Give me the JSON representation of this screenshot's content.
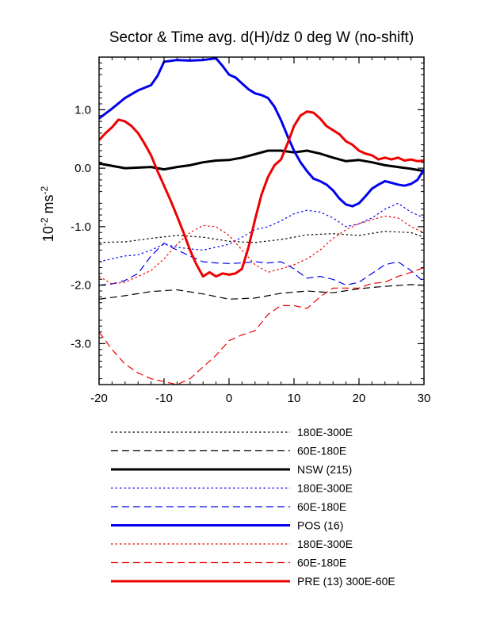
{
  "chart_data": {
    "type": "line",
    "title": "Sector & Time avg. d(H)/dz 0 deg W (no-shift)",
    "ylabel": {
      "base": "10",
      "exp1": "-2",
      "unit": " ms",
      "exp2": "-2"
    },
    "xlabel": "",
    "xlim": [
      -20,
      30
    ],
    "ylim": [
      -3.7,
      1.9
    ],
    "xticks": [
      -20,
      -10,
      0,
      10,
      20,
      30
    ],
    "xtick_labels": [
      "-20",
      "-10",
      "0",
      "10",
      "20",
      "30"
    ],
    "yticks": [
      1.0,
      0.0,
      -1.0,
      -2.0,
      -3.0
    ],
    "ytick_labels": [
      "1.0",
      "0.0",
      "-1.0",
      "-2.0",
      "-3.0"
    ],
    "grid": false,
    "legend_position": "below",
    "series": [
      {
        "name": "180E-300E",
        "color": "#000000",
        "dash": "dot",
        "width": 1.2,
        "x": [
          -20,
          -16,
          -12,
          -8,
          -4,
          0,
          4,
          8,
          12,
          16,
          20,
          24,
          28,
          30
        ],
        "y": [
          -1.27,
          -1.26,
          -1.2,
          -1.15,
          -1.18,
          -1.25,
          -1.27,
          -1.22,
          -1.14,
          -1.12,
          -1.15,
          -1.08,
          -1.1,
          -1.18
        ]
      },
      {
        "name": "60E-180E",
        "color": "#000000",
        "dash": "dash",
        "width": 1.2,
        "x": [
          -20,
          -16,
          -12,
          -8,
          -4,
          0,
          4,
          8,
          12,
          16,
          20,
          24,
          28,
          30
        ],
        "y": [
          -2.24,
          -2.18,
          -2.11,
          -2.08,
          -2.15,
          -2.24,
          -2.22,
          -2.14,
          -2.1,
          -2.13,
          -2.06,
          -2.02,
          -1.99,
          -2.0
        ]
      },
      {
        "name": "NSW (215)",
        "color": "#000000",
        "dash": "solid",
        "width": 3,
        "x": [
          -20,
          -16,
          -12,
          -10,
          -8,
          -6,
          -4,
          -2,
          0,
          2,
          4,
          6,
          8,
          10,
          12,
          14,
          16,
          18,
          20,
          22,
          24,
          26,
          28,
          30
        ],
        "y": [
          0.08,
          0.0,
          0.02,
          -0.02,
          0.02,
          0.05,
          0.1,
          0.13,
          0.14,
          0.18,
          0.24,
          0.3,
          0.3,
          0.27,
          0.3,
          0.25,
          0.18,
          0.12,
          0.14,
          0.1,
          0.05,
          0.02,
          -0.01,
          -0.05
        ]
      },
      {
        "name": "180E-300E",
        "color": "#0000ee",
        "dash": "dot",
        "width": 1.2,
        "x": [
          -20,
          -16,
          -14,
          -12,
          -10,
          -8,
          -6,
          -4,
          -2,
          0,
          2,
          4,
          6,
          8,
          10,
          12,
          14,
          16,
          18,
          20,
          22,
          24,
          26,
          28,
          30
        ],
        "y": [
          -1.6,
          -1.5,
          -1.48,
          -1.4,
          -1.3,
          -1.35,
          -1.38,
          -1.4,
          -1.35,
          -1.3,
          -1.18,
          -1.05,
          -1.0,
          -0.9,
          -0.78,
          -0.72,
          -0.75,
          -0.85,
          -1.0,
          -0.95,
          -0.85,
          -0.7,
          -0.6,
          -0.75,
          -0.85
        ]
      },
      {
        "name": "60E-180E",
        "color": "#0000ee",
        "dash": "dash",
        "width": 1.2,
        "x": [
          -20,
          -18,
          -16,
          -14,
          -12,
          -10,
          -8,
          -6,
          -4,
          -2,
          0,
          2,
          4,
          6,
          8,
          10,
          12,
          14,
          16,
          18,
          20,
          22,
          24,
          26,
          28,
          30
        ],
        "y": [
          -2.0,
          -1.98,
          -1.92,
          -1.8,
          -1.5,
          -1.28,
          -1.4,
          -1.5,
          -1.6,
          -1.62,
          -1.63,
          -1.62,
          -1.6,
          -1.62,
          -1.6,
          -1.72,
          -1.88,
          -1.85,
          -1.9,
          -2.0,
          -1.95,
          -1.8,
          -1.65,
          -1.6,
          -1.75,
          -1.95
        ]
      },
      {
        "name": "POS (16)",
        "color": "#0000ee",
        "dash": "solid",
        "width": 3,
        "x": [
          -20,
          -18,
          -16,
          -14,
          -12,
          -11,
          -10,
          -8,
          -6,
          -4,
          -2,
          -1,
          0,
          1,
          2,
          3,
          4,
          5,
          6,
          7,
          8,
          9,
          10,
          11,
          12,
          13,
          14,
          15,
          16,
          17,
          18,
          19,
          20,
          21,
          22,
          23,
          24,
          25,
          26,
          27,
          28,
          29,
          30
        ],
        "y": [
          0.85,
          1.02,
          1.2,
          1.33,
          1.42,
          1.58,
          1.82,
          1.85,
          1.84,
          1.85,
          1.88,
          1.75,
          1.6,
          1.55,
          1.45,
          1.35,
          1.28,
          1.25,
          1.2,
          1.05,
          0.82,
          0.55,
          0.3,
          0.1,
          -0.05,
          -0.18,
          -0.22,
          -0.28,
          -0.38,
          -0.52,
          -0.62,
          -0.65,
          -0.6,
          -0.48,
          -0.35,
          -0.28,
          -0.22,
          -0.25,
          -0.28,
          -0.3,
          -0.27,
          -0.2,
          -0.02
        ]
      },
      {
        "name": "180E-300E",
        "color": "#ee0000",
        "dash": "dot",
        "width": 1.2,
        "x": [
          -20,
          -18,
          -16,
          -14,
          -12,
          -10,
          -8,
          -6,
          -4,
          -2,
          0,
          2,
          4,
          6,
          8,
          10,
          12,
          14,
          16,
          18,
          20,
          22,
          24,
          26,
          28,
          30
        ],
        "y": [
          -1.85,
          -1.98,
          -1.95,
          -1.85,
          -1.75,
          -1.55,
          -1.3,
          -1.1,
          -0.98,
          -1.0,
          -1.15,
          -1.4,
          -1.65,
          -1.78,
          -1.72,
          -1.65,
          -1.55,
          -1.4,
          -1.2,
          -1.05,
          -0.95,
          -0.88,
          -0.82,
          -0.85,
          -1.0,
          -1.1
        ]
      },
      {
        "name": "60E-180E",
        "color": "#ee0000",
        "dash": "dash",
        "width": 1.2,
        "x": [
          -20,
          -18,
          -16,
          -14,
          -12,
          -10,
          -8,
          -6,
          -4,
          -2,
          0,
          2,
          4,
          6,
          8,
          10,
          12,
          14,
          16,
          18,
          20,
          22,
          24,
          26,
          28,
          30
        ],
        "y": [
          -2.8,
          -3.1,
          -3.35,
          -3.5,
          -3.6,
          -3.65,
          -3.7,
          -3.6,
          -3.4,
          -3.2,
          -2.95,
          -2.85,
          -2.78,
          -2.5,
          -2.35,
          -2.35,
          -2.4,
          -2.2,
          -2.05,
          -2.05,
          -2.05,
          -1.97,
          -1.95,
          -1.85,
          -1.78,
          -1.7
        ]
      },
      {
        "name": "PRE (13) 300E-60E",
        "color": "#ee0000",
        "dash": "solid",
        "width": 3,
        "x": [
          -20,
          -19,
          -18,
          -17,
          -16,
          -15,
          -14,
          -13,
          -12,
          -11,
          -10,
          -9,
          -8,
          -7,
          -6,
          -5,
          -4,
          -3,
          -2,
          -1,
          0,
          1,
          2,
          3,
          4,
          5,
          6,
          7,
          8,
          9,
          10,
          11,
          12,
          13,
          14,
          15,
          16,
          17,
          18,
          19,
          20,
          21,
          22,
          23,
          24,
          25,
          26,
          27,
          28,
          29,
          30
        ],
        "y": [
          0.48,
          0.6,
          0.7,
          0.83,
          0.8,
          0.72,
          0.6,
          0.42,
          0.22,
          -0.05,
          -0.3,
          -0.55,
          -0.82,
          -1.1,
          -1.4,
          -1.65,
          -1.85,
          -1.78,
          -1.85,
          -1.8,
          -1.82,
          -1.8,
          -1.72,
          -1.35,
          -0.88,
          -0.45,
          -0.15,
          0.05,
          0.15,
          0.42,
          0.72,
          0.9,
          0.97,
          0.95,
          0.85,
          0.72,
          0.65,
          0.58,
          0.46,
          0.4,
          0.3,
          0.25,
          0.22,
          0.15,
          0.18,
          0.15,
          0.18,
          0.13,
          0.15,
          0.12,
          0.13
        ]
      }
    ],
    "legend_order": [
      0,
      1,
      2,
      3,
      4,
      5,
      6,
      7,
      8
    ]
  }
}
